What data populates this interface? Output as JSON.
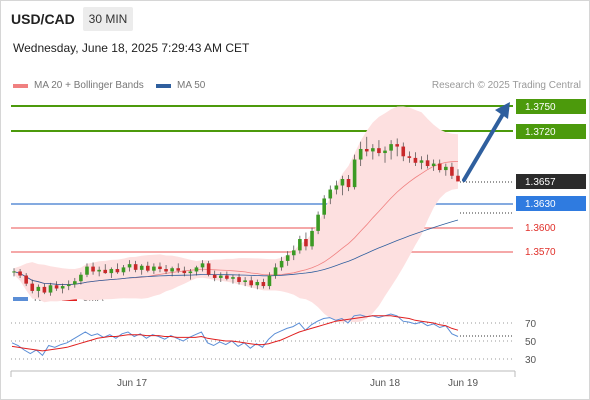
{
  "header": {
    "symbol": "USD/CAD",
    "timeframe": "30 MIN",
    "datetime": "Wednesday, June 18, 2025 7:29:43 AM CET"
  },
  "legend": {
    "items": [
      {
        "label": "MA 20 + Bollinger Bands",
        "color": "#f08080"
      },
      {
        "label": "MA 50",
        "color": "#2f5f9e"
      }
    ],
    "credit": "Research © 2025 Trading Central"
  },
  "rsi_legend": {
    "items": [
      {
        "label": "RSI",
        "color": "#5b8ed6"
      },
      {
        "label": "9MA",
        "color": "#e02020"
      }
    ]
  },
  "chart_data": [
    {
      "type": "candlestick",
      "title": "USD/CAD",
      "price_levels": [
        {
          "value": "1.3750",
          "kind": "target",
          "color": "#4c9a0c"
        },
        {
          "value": "1.3720",
          "kind": "target",
          "color": "#4c9a0c"
        },
        {
          "value": "1.3657",
          "kind": "last",
          "color": "#2b2b2b"
        },
        {
          "value": "1.3630",
          "kind": "pivot",
          "color": "#2f7be0"
        },
        {
          "value": "1.3600",
          "kind": "support",
          "color": "#e0302a"
        },
        {
          "value": "1.3570",
          "kind": "support",
          "color": "#e0302a"
        }
      ],
      "x_ticks": [
        "Jun 17",
        "Jun 18",
        "Jun 19"
      ],
      "candles": [
        [
          1.3545,
          1.355,
          1.354,
          1.3546
        ],
        [
          1.3546,
          1.3549,
          1.3538,
          1.3541
        ],
        [
          1.3541,
          1.3544,
          1.3528,
          1.3531
        ],
        [
          1.3531,
          1.3536,
          1.3519,
          1.3522
        ],
        [
          1.3522,
          1.353,
          1.3514,
          1.3527
        ],
        [
          1.3527,
          1.3531,
          1.3518,
          1.352
        ],
        [
          1.352,
          1.3532,
          1.3516,
          1.3529
        ],
        [
          1.3529,
          1.3534,
          1.3522,
          1.3525
        ],
        [
          1.3525,
          1.3531,
          1.3519,
          1.3528
        ],
        [
          1.3528,
          1.3535,
          1.3523,
          1.353
        ],
        [
          1.353,
          1.3538,
          1.3526,
          1.3534
        ],
        [
          1.3534,
          1.3545,
          1.353,
          1.3542
        ],
        [
          1.3542,
          1.3556,
          1.3539,
          1.3552
        ],
        [
          1.3552,
          1.3557,
          1.3542,
          1.3546
        ],
        [
          1.3546,
          1.3552,
          1.354,
          1.3548
        ],
        [
          1.3548,
          1.3555,
          1.3543,
          1.3544
        ],
        [
          1.3544,
          1.3551,
          1.3538,
          1.3549
        ],
        [
          1.3549,
          1.3556,
          1.3543,
          1.3545
        ],
        [
          1.3545,
          1.3554,
          1.3541,
          1.3551
        ],
        [
          1.3551,
          1.356,
          1.3546,
          1.3555
        ],
        [
          1.3555,
          1.3559,
          1.3545,
          1.3548
        ],
        [
          1.3548,
          1.3555,
          1.3542,
          1.3553
        ],
        [
          1.3553,
          1.3558,
          1.3545,
          1.3547
        ],
        [
          1.3547,
          1.3556,
          1.3543,
          1.3552
        ],
        [
          1.3552,
          1.3557,
          1.3545,
          1.3549
        ],
        [
          1.3549,
          1.3554,
          1.3543,
          1.3546
        ],
        [
          1.3546,
          1.3552,
          1.354,
          1.355
        ],
        [
          1.355,
          1.3556,
          1.3544,
          1.3547
        ],
        [
          1.3547,
          1.3552,
          1.354,
          1.3544
        ],
        [
          1.3544,
          1.3549,
          1.3536,
          1.3546
        ],
        [
          1.3546,
          1.3553,
          1.3541,
          1.3551
        ],
        [
          1.3551,
          1.356,
          1.3546,
          1.3556
        ],
        [
          1.3556,
          1.3559,
          1.354,
          1.3542
        ],
        [
          1.3542,
          1.3547,
          1.3534,
          1.3538
        ],
        [
          1.3538,
          1.3545,
          1.3533,
          1.3541
        ],
        [
          1.3541,
          1.3546,
          1.3535,
          1.3537
        ],
        [
          1.3537,
          1.3542,
          1.3531,
          1.3539
        ],
        [
          1.3539,
          1.3543,
          1.353,
          1.3533
        ],
        [
          1.3533,
          1.3539,
          1.3528,
          1.3535
        ],
        [
          1.3535,
          1.354,
          1.3526,
          1.3529
        ],
        [
          1.3529,
          1.3536,
          1.3524,
          1.3533
        ],
        [
          1.3533,
          1.3537,
          1.3525,
          1.3528
        ],
        [
          1.3528,
          1.3545,
          1.3524,
          1.3541
        ],
        [
          1.3541,
          1.3556,
          1.3537,
          1.3551
        ],
        [
          1.3551,
          1.3564,
          1.3547,
          1.3559
        ],
        [
          1.3559,
          1.3571,
          1.3553,
          1.3566
        ],
        [
          1.3566,
          1.3578,
          1.356,
          1.3572
        ],
        [
          1.3572,
          1.359,
          1.3568,
          1.3586
        ],
        [
          1.3586,
          1.3594,
          1.3572,
          1.3577
        ],
        [
          1.3577,
          1.36,
          1.3573,
          1.3596
        ],
        [
          1.3596,
          1.362,
          1.3592,
          1.3616
        ],
        [
          1.3616,
          1.364,
          1.3611,
          1.3636
        ],
        [
          1.3636,
          1.3652,
          1.3629,
          1.3647
        ],
        [
          1.3647,
          1.3658,
          1.3641,
          1.3652
        ],
        [
          1.3652,
          1.3664,
          1.364,
          1.366
        ],
        [
          1.366,
          1.3665,
          1.3645,
          1.365
        ],
        [
          1.365,
          1.369,
          1.3647,
          1.3684
        ],
        [
          1.3684,
          1.3706,
          1.3676,
          1.3697
        ],
        [
          1.3697,
          1.3712,
          1.3688,
          1.3694
        ],
        [
          1.3694,
          1.3703,
          1.3684,
          1.3698
        ],
        [
          1.3698,
          1.3708,
          1.3688,
          1.3692
        ],
        [
          1.3692,
          1.37,
          1.368,
          1.3695
        ],
        [
          1.3695,
          1.3708,
          1.3684,
          1.3703
        ],
        [
          1.3703,
          1.371,
          1.3688,
          1.37
        ],
        [
          1.37,
          1.3705,
          1.3682,
          1.3688
        ],
        [
          1.3688,
          1.3694,
          1.368,
          1.3686
        ],
        [
          1.3686,
          1.3693,
          1.3676,
          1.368
        ],
        [
          1.368,
          1.3688,
          1.3672,
          1.3683
        ],
        [
          1.3683,
          1.369,
          1.3673,
          1.3676
        ],
        [
          1.3676,
          1.3684,
          1.367,
          1.3679
        ],
        [
          1.3679,
          1.3684,
          1.3668,
          1.3671
        ],
        [
          1.3671,
          1.3679,
          1.3664,
          1.3675
        ],
        [
          1.3675,
          1.368,
          1.366,
          1.3664
        ],
        [
          1.3664,
          1.3672,
          1.3658,
          1.3657
        ]
      ]
    },
    {
      "type": "line",
      "title": "RSI",
      "y_ticks": [
        "70",
        "50",
        "30"
      ],
      "ylim": [
        20,
        80
      ],
      "series": [
        {
          "name": "RSI",
          "values": [
            48,
            45,
            40,
            36,
            40,
            34,
            45,
            43,
            46,
            48,
            52,
            56,
            60,
            56,
            58,
            54,
            57,
            53,
            58,
            60,
            55,
            58,
            53,
            57,
            55,
            52,
            56,
            53,
            50,
            54,
            57,
            60,
            48,
            45,
            49,
            46,
            50,
            44,
            48,
            42,
            47,
            43,
            52,
            58,
            61,
            64,
            66,
            70,
            62,
            68,
            72,
            75,
            76,
            73,
            75,
            70,
            78,
            79,
            77,
            78,
            76,
            78,
            80,
            78,
            72,
            71,
            69,
            71,
            67,
            69,
            65,
            67,
            58,
            55
          ]
        },
        {
          "name": "9MA",
          "values": [
            44,
            43,
            42,
            41,
            40,
            39,
            40,
            41,
            42,
            43,
            45,
            47,
            49,
            51,
            53,
            54,
            55,
            55,
            56,
            57,
            57,
            57,
            56,
            56,
            56,
            55,
            55,
            54,
            54,
            54,
            54,
            55,
            53,
            52,
            51,
            50,
            50,
            49,
            48,
            47,
            46,
            46,
            47,
            49,
            51,
            54,
            57,
            60,
            62,
            64,
            66,
            68,
            70,
            72,
            73,
            74,
            75,
            76,
            77,
            78,
            78,
            78,
            78,
            77,
            76,
            75,
            73,
            72,
            71,
            70,
            68,
            67,
            64,
            62
          ]
        }
      ]
    }
  ]
}
